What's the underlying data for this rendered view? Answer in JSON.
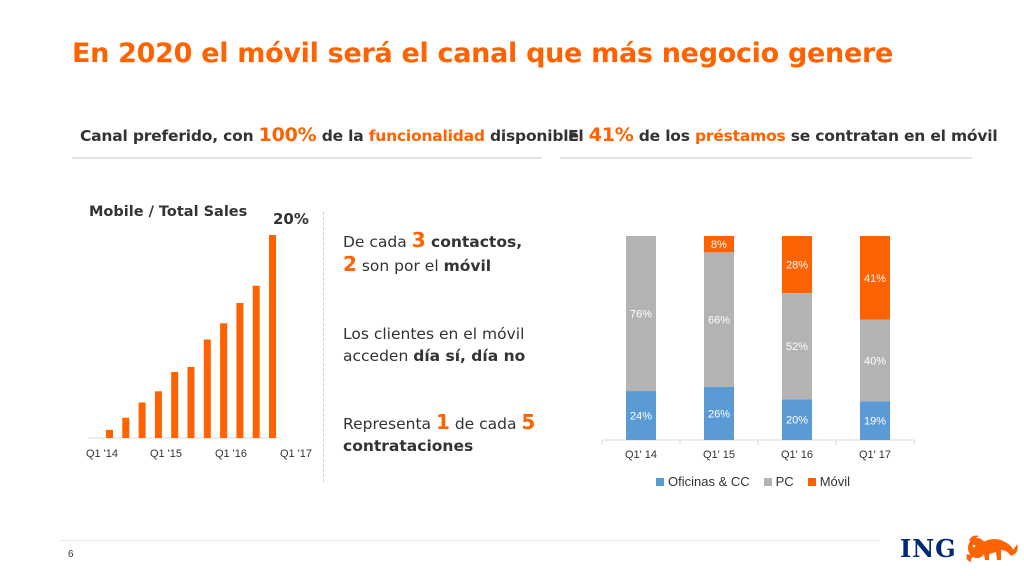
{
  "title": "En 2020 el móvil será el canal que más negocio genere",
  "left_subhead": {
    "prefix": "Canal preferido, con ",
    "pct": "100%",
    "middle": " de la ",
    "highlight": "funcionalidad",
    "suffix": " disponible"
  },
  "right_subhead": {
    "prefix": "El ",
    "pct": "41%",
    "middle": " de los ",
    "highlight": "préstamos",
    "suffix": " se contratan en el móvil"
  },
  "statements": {
    "s1": {
      "a": "De cada ",
      "n1": "3",
      "b": " contactos,",
      "n2": "2",
      "c": " son por el ",
      "d": "móvil"
    },
    "s2": {
      "line1": "Los clientes en el móvil",
      "a": "acceden ",
      "b": "día sí, día no"
    },
    "s3": {
      "a": "Representa ",
      "n1": "1",
      "b": " de cada ",
      "n2": "5",
      "c": "contrataciones"
    }
  },
  "page_number": "6",
  "logo_text": "ING",
  "logo_icon": "lion-icon",
  "colors": {
    "accent": "#ff6200",
    "blue": "#5b9bd5",
    "gray": "#b3b3b3",
    "brand_blue": "#00297a"
  },
  "chart_data": [
    {
      "type": "bar",
      "title": "Mobile / Total Sales",
      "annotation": "20%",
      "ticks": [
        "Q1 '14",
        "Q1 '15",
        "Q1 '16",
        "Q1 '17"
      ],
      "values": [
        0.8,
        2.0,
        3.5,
        4.6,
        6.5,
        7.0,
        9.7,
        11.3,
        13.3,
        15.0,
        20.0
      ],
      "ylim": [
        0,
        20
      ],
      "color": "#ff6200"
    },
    {
      "type": "bar",
      "stacked": true,
      "categories": [
        "Q1' 14",
        "Q1' 15",
        "Q1' 16",
        "Q1' 17"
      ],
      "series": [
        {
          "name": "Oficinas & CC",
          "values": [
            24,
            26,
            20,
            19
          ],
          "color": "#5b9bd5"
        },
        {
          "name": "PC",
          "values": [
            76,
            66,
            52,
            40
          ],
          "color": "#b3b3b3"
        },
        {
          "name": "Móvil",
          "values": [
            0,
            8,
            28,
            41
          ],
          "color": "#ff6200"
        }
      ],
      "labels": [
        [
          "24%",
          "76%",
          ""
        ],
        [
          "26%",
          "66%",
          "8%"
        ],
        [
          "20%",
          "52%",
          "28%"
        ],
        [
          "19%",
          "40%",
          "41%"
        ]
      ],
      "ylim": [
        0,
        100
      ],
      "legend": "bottom"
    }
  ]
}
